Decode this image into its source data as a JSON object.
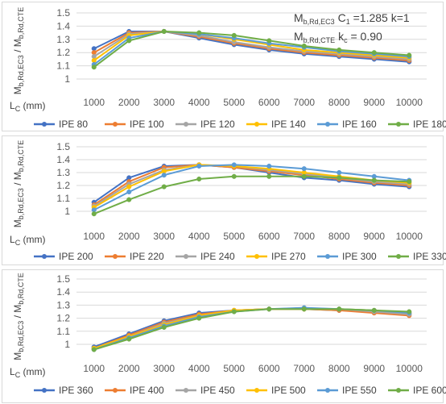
{
  "chart_data": [
    {
      "type": "line",
      "x": [
        1000,
        2000,
        3000,
        4000,
        5000,
        6000,
        7000,
        8000,
        9000,
        10000
      ],
      "ylim": [
        1,
        1.5
      ],
      "yticks": [
        "1",
        "1.1",
        "1.2",
        "1.3",
        "1.4",
        "1.5"
      ],
      "ylabel": {
        "a": "M",
        "a_sub": "b,Rd,EC3",
        "sep": " / ",
        "b": "M",
        "b_sub": "b,Rd,CTE"
      },
      "xlabel": {
        "main": "L",
        "sub": "C",
        "unit": " (mm)"
      },
      "grid": true,
      "legend": "bottom",
      "annotation": {
        "l1_main": "M",
        "l1_sub": "b,Rd,EC3",
        "l1_rest": "  C",
        "l1_rest_sub": "1",
        "l1_tail": " =1.285  k=1",
        "l2_main": "M",
        "l2_sub": "b,Rd,CTE",
        "l2_rest": " k",
        "l2_rest_sub": "c",
        "l2_tail": " = 0.90"
      },
      "series": [
        {
          "name": "IPE 80",
          "color": "#4472C4",
          "values": [
            1.23,
            1.36,
            1.36,
            1.31,
            1.26,
            1.22,
            1.19,
            1.17,
            1.15,
            1.13
          ]
        },
        {
          "name": "IPE 100",
          "color": "#ED7D31",
          "values": [
            1.2,
            1.35,
            1.36,
            1.32,
            1.27,
            1.23,
            1.2,
            1.18,
            1.16,
            1.14
          ]
        },
        {
          "name": "IPE 120",
          "color": "#A5A5A5",
          "values": [
            1.17,
            1.34,
            1.36,
            1.33,
            1.28,
            1.24,
            1.21,
            1.19,
            1.17,
            1.15
          ]
        },
        {
          "name": "IPE 140",
          "color": "#FFC000",
          "values": [
            1.14,
            1.33,
            1.36,
            1.34,
            1.3,
            1.26,
            1.22,
            1.2,
            1.18,
            1.16
          ]
        },
        {
          "name": "IPE 160",
          "color": "#5B9BD5",
          "values": [
            1.11,
            1.31,
            1.36,
            1.34,
            1.31,
            1.27,
            1.24,
            1.21,
            1.19,
            1.17
          ]
        },
        {
          "name": "IPE 180",
          "color": "#70AD47",
          "values": [
            1.09,
            1.29,
            1.36,
            1.35,
            1.33,
            1.29,
            1.25,
            1.22,
            1.2,
            1.18
          ]
        }
      ]
    },
    {
      "type": "line",
      "x": [
        1000,
        2000,
        3000,
        4000,
        5000,
        6000,
        7000,
        8000,
        9000,
        10000
      ],
      "ylim": [
        1,
        1.5
      ],
      "yticks": [
        "1",
        "1.1",
        "1.2",
        "1.3",
        "1.4",
        "1.5"
      ],
      "ylabel": {
        "a": "M",
        "a_sub": "b,Rd,EC3",
        "sep": " / ",
        "b": "M",
        "b_sub": "b,Rd,CTE"
      },
      "xlabel": {
        "main": "L",
        "sub": "C",
        "unit": " (mm)"
      },
      "grid": true,
      "legend": "bottom",
      "series": [
        {
          "name": "IPE 200",
          "color": "#4472C4",
          "values": [
            1.07,
            1.26,
            1.35,
            1.36,
            1.34,
            1.3,
            1.26,
            1.24,
            1.21,
            1.19
          ]
        },
        {
          "name": "IPE 220",
          "color": "#ED7D31",
          "values": [
            1.05,
            1.23,
            1.34,
            1.36,
            1.34,
            1.31,
            1.28,
            1.25,
            1.22,
            1.2
          ]
        },
        {
          "name": "IPE 240",
          "color": "#A5A5A5",
          "values": [
            1.04,
            1.21,
            1.32,
            1.36,
            1.35,
            1.32,
            1.29,
            1.26,
            1.23,
            1.21
          ]
        },
        {
          "name": "IPE 270",
          "color": "#FFC000",
          "values": [
            1.03,
            1.19,
            1.31,
            1.36,
            1.35,
            1.33,
            1.3,
            1.27,
            1.24,
            1.22
          ]
        },
        {
          "name": "IPE 300",
          "color": "#5B9BD5",
          "values": [
            1.01,
            1.15,
            1.28,
            1.35,
            1.36,
            1.35,
            1.33,
            1.3,
            1.27,
            1.24
          ]
        },
        {
          "name": "IPE 330",
          "color": "#70AD47",
          "values": [
            0.98,
            1.09,
            1.19,
            1.25,
            1.27,
            1.27,
            1.27,
            1.26,
            1.24,
            1.23
          ]
        }
      ]
    },
    {
      "type": "line",
      "x": [
        1000,
        2000,
        3000,
        4000,
        5000,
        6000,
        7000,
        8000,
        9000,
        10000
      ],
      "ylim": [
        1,
        1.5
      ],
      "yticks": [
        "1",
        "1.1",
        "1.2",
        "1.3",
        "1.4",
        "1.5"
      ],
      "ylabel": {
        "a": "M",
        "a_sub": "b,Rd,EC3",
        "sep": " / ",
        "b": "M",
        "b_sub": "b,Rd,CTE"
      },
      "xlabel": {
        "main": "L",
        "sub": "C",
        "unit": " (mm)"
      },
      "grid": true,
      "legend": "bottom",
      "series": [
        {
          "name": "IPE 360",
          "color": "#4472C4",
          "values": [
            0.98,
            1.08,
            1.18,
            1.24,
            1.26,
            1.27,
            1.27,
            1.26,
            1.25,
            1.23
          ]
        },
        {
          "name": "IPE 400",
          "color": "#ED7D31",
          "values": [
            0.97,
            1.07,
            1.17,
            1.23,
            1.26,
            1.27,
            1.27,
            1.26,
            1.24,
            1.22
          ]
        },
        {
          "name": "IPE 450",
          "color": "#A5A5A5",
          "values": [
            0.97,
            1.06,
            1.16,
            1.22,
            1.26,
            1.27,
            1.27,
            1.27,
            1.25,
            1.23
          ]
        },
        {
          "name": "IPE 500",
          "color": "#FFC000",
          "values": [
            0.97,
            1.06,
            1.15,
            1.22,
            1.26,
            1.27,
            1.27,
            1.27,
            1.26,
            1.24
          ]
        },
        {
          "name": "IPE 550",
          "color": "#5B9BD5",
          "values": [
            0.96,
            1.05,
            1.14,
            1.21,
            1.25,
            1.27,
            1.28,
            1.27,
            1.26,
            1.24
          ]
        },
        {
          "name": "IPE 600",
          "color": "#70AD47",
          "values": [
            0.96,
            1.04,
            1.13,
            1.2,
            1.25,
            1.27,
            1.27,
            1.27,
            1.26,
            1.25
          ]
        }
      ]
    }
  ]
}
